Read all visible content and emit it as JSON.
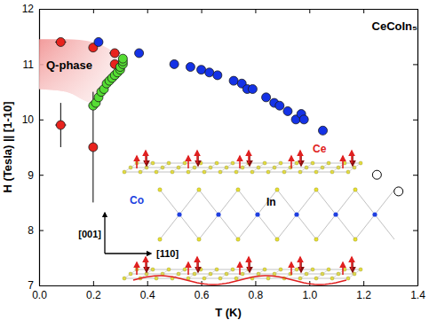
{
  "chart_data": {
    "type": "scatter",
    "x_label": "T (K)",
    "y_label": "H (Tesla) || [1-10]",
    "xlim": [
      0,
      1.4
    ],
    "xticks": [
      {
        "value": 0,
        "label": "0.0"
      },
      0.2,
      0.4,
      0.6,
      0.8,
      {
        "value": 1,
        "label": "1.0"
      },
      1.2,
      1.4
    ],
    "ylim": [
      7,
      12
    ],
    "yticks": [
      7,
      8,
      9,
      10,
      11,
      12
    ],
    "annotations": [
      "CeCoIn₅",
      "Ce",
      "In",
      "Co",
      "[001]",
      "[110]"
    ],
    "series": [
      {
        "name": "Q-phase",
        "type": "area",
        "color": "#f08a8a",
        "x": [
          0,
          0.1,
          0.2,
          0.25,
          0.28,
          0.3
        ],
        "values": [
          11.45,
          11.45,
          11.4,
          11.3,
          11.2,
          11.1
        ],
        "lower": [
          10.55,
          10.5,
          10.3,
          10.6,
          10.8,
          11.0
        ]
      },
      {
        "type": "scatter",
        "color": "#e8231e",
        "marker": "circle",
        "x": [
          0.08,
          0.2,
          0.28,
          0.28,
          0.08,
          0.2
        ],
        "values": [
          11.4,
          11.3,
          11.2,
          11.0,
          9.9,
          9.5
        ],
        "xerr": [
          0.02,
          0.01,
          0.02,
          0,
          0.02,
          0
        ],
        "yerr": [
          0,
          0,
          0,
          0,
          0.4,
          1.0
        ]
      },
      {
        "type": "scatter",
        "color": "#55dd33",
        "marker": "circle",
        "x": [
          0.2,
          0.21,
          0.22,
          0.23,
          0.24,
          0.25,
          0.26,
          0.27,
          0.28,
          0.29,
          0.3,
          0.3,
          0.31,
          0.31,
          0.31
        ],
        "values": [
          10.25,
          10.3,
          10.4,
          10.5,
          10.55,
          10.65,
          10.7,
          10.75,
          10.8,
          10.85,
          10.9,
          10.95,
          11.0,
          11.05,
          11.1
        ]
      },
      {
        "type": "scatter",
        "color": "#1432e6",
        "marker": "circle",
        "x": [
          0.22,
          0.37,
          0.5,
          0.56,
          0.6,
          0.63,
          0.66,
          0.72,
          0.75,
          0.77,
          0.79,
          0.84,
          0.87,
          0.89,
          0.92,
          0.95,
          0.97,
          0.98,
          1.05
        ],
        "values": [
          11.4,
          11.2,
          11.0,
          10.95,
          10.9,
          10.85,
          10.8,
          10.7,
          10.65,
          10.55,
          10.55,
          10.4,
          10.3,
          10.25,
          10.15,
          10.0,
          10.1,
          10.0,
          9.8
        ]
      },
      {
        "type": "scatter",
        "color": "#ffffff",
        "marker": "open_circle",
        "x": [
          1.25,
          1.33
        ],
        "values": [
          9.0,
          8.7
        ]
      }
    ]
  }
}
